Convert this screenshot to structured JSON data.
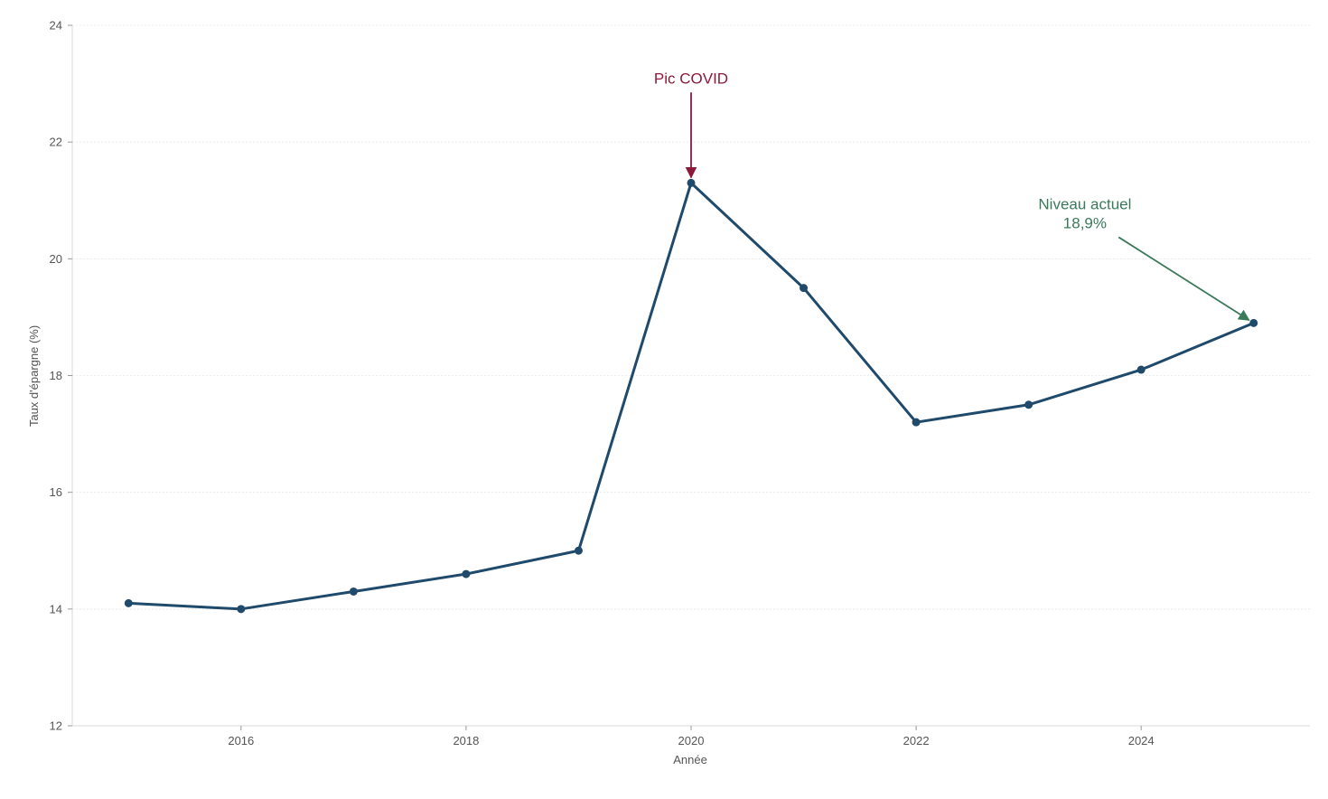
{
  "chart_data": {
    "type": "line",
    "title": "",
    "xlabel": "Année",
    "ylabel": "Taux d'épargne (%)",
    "xlim": [
      2014.5,
      2025.5
    ],
    "ylim": [
      12,
      24
    ],
    "x_ticks": [
      2016,
      2018,
      2020,
      2022,
      2024
    ],
    "y_ticks": [
      12,
      14,
      16,
      18,
      20,
      22,
      24
    ],
    "grid": "horizontal",
    "legend": "none",
    "series": [
      {
        "color": "#1f4a6b",
        "marker": "circle",
        "points": [
          {
            "x": 2015,
            "y": 14.1
          },
          {
            "x": 2016,
            "y": 14.0
          },
          {
            "x": 2017,
            "y": 14.3
          },
          {
            "x": 2018,
            "y": 14.6
          },
          {
            "x": 2019,
            "y": 15.0
          },
          {
            "x": 2020,
            "y": 21.3
          },
          {
            "x": 2021,
            "y": 19.5
          },
          {
            "x": 2022,
            "y": 17.2
          },
          {
            "x": 2023,
            "y": 17.5
          },
          {
            "x": 2024,
            "y": 18.1
          },
          {
            "x": 2025,
            "y": 18.9
          }
        ]
      }
    ],
    "annotations": [
      {
        "id": "covid-peak",
        "lines": [
          "Pic COVID"
        ],
        "color": "#8b1a3a",
        "target": {
          "x": 2020,
          "y": 21.3
        },
        "text_at": {
          "x": 2020,
          "y": 23.0
        },
        "arrow_from": {
          "x": 2020,
          "y": 22.85
        }
      },
      {
        "id": "current-level",
        "lines": [
          "Niveau actuel",
          "18,9%"
        ],
        "color": "#3a7a5a",
        "target": {
          "x": 2025,
          "y": 18.9
        },
        "text_at": {
          "x": 2023.5,
          "y": 20.85
        },
        "arrow_from": {
          "x": 2023.8,
          "y": 20.37
        }
      }
    ]
  }
}
